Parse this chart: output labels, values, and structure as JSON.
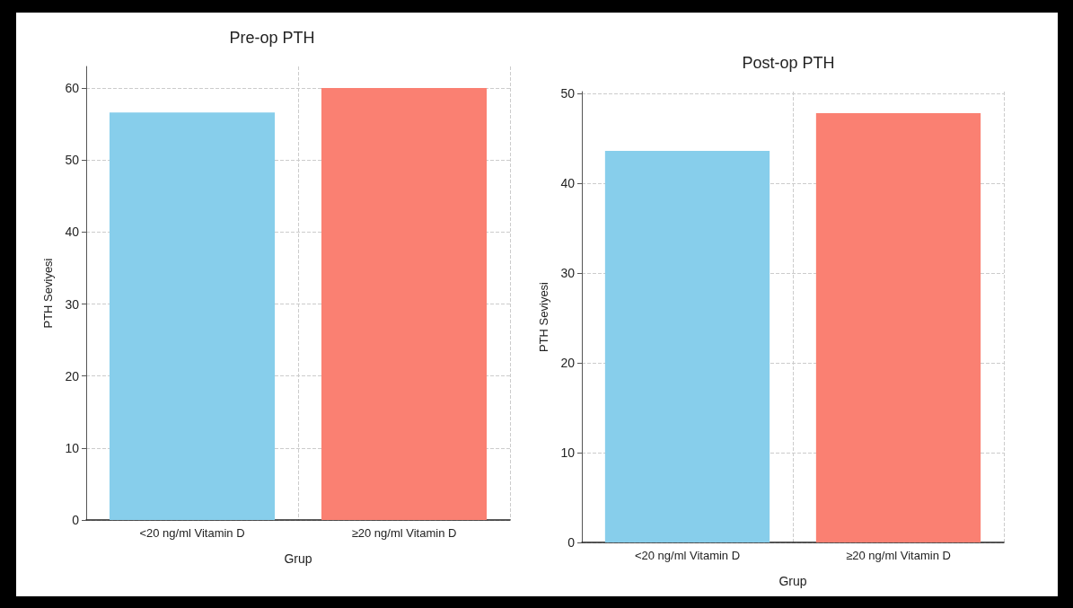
{
  "chart_data": [
    {
      "type": "bar",
      "title": "Pre-op PTH",
      "xlabel": "Grup",
      "ylabel": "PTH Seviyesi",
      "categories": [
        "<20 ng/ml Vitamin D",
        "≥20 ng/ml Vitamin D"
      ],
      "values": [
        56.6,
        60.0
      ],
      "colors": [
        "#87ceeb",
        "#fa8072"
      ],
      "ylim": [
        0,
        63
      ],
      "yticks": [
        0,
        10,
        20,
        30,
        40,
        50,
        60
      ],
      "grid": true
    },
    {
      "type": "bar",
      "title": "Post-op PTH",
      "xlabel": "Grup",
      "ylabel": "PTH Seviyesi",
      "categories": [
        "<20 ng/ml Vitamin D",
        "≥20 ng/ml Vitamin D"
      ],
      "values": [
        43.6,
        47.8
      ],
      "colors": [
        "#87ceeb",
        "#fa8072"
      ],
      "ylim": [
        0,
        50.2
      ],
      "yticks": [
        0,
        10,
        20,
        30,
        40,
        50
      ],
      "grid": true
    }
  ]
}
